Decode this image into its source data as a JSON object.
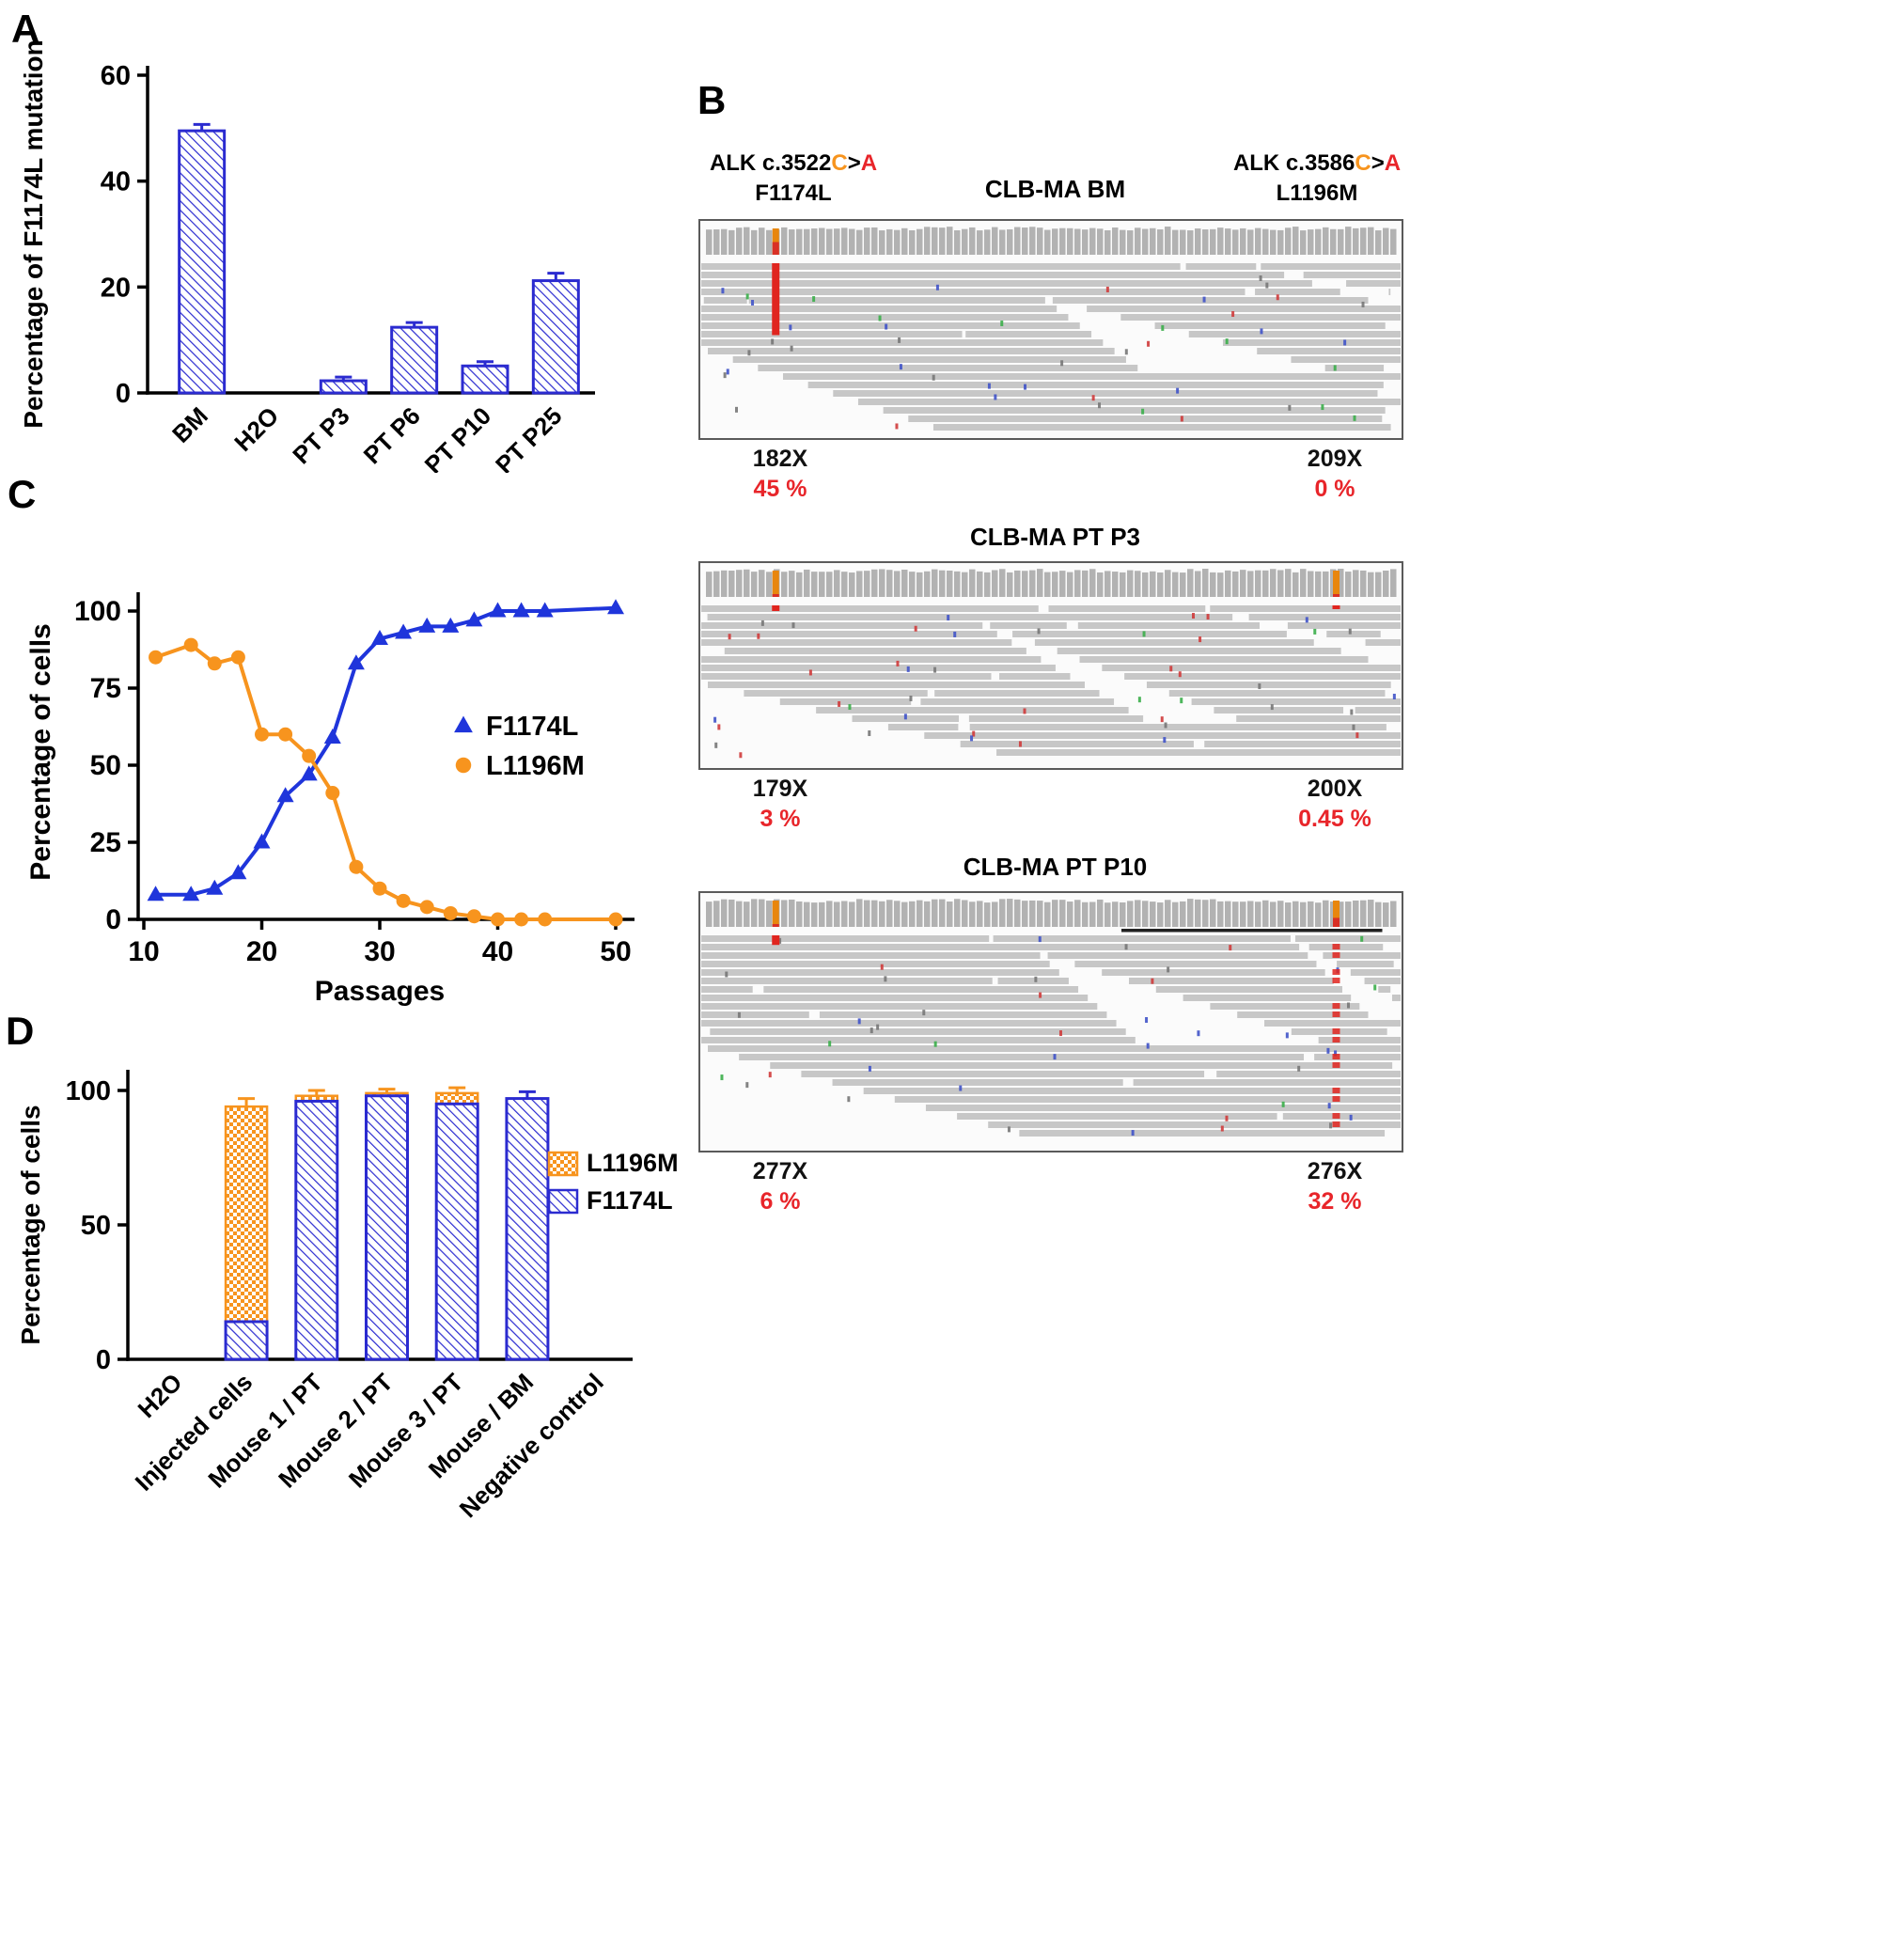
{
  "figure": {
    "panel_labels": {
      "A": "A",
      "B": "B",
      "C": "C",
      "D": "D"
    }
  },
  "colors": {
    "blue": "#2b2bd0",
    "orange": "#f7941e",
    "red": "#e8252a"
  },
  "panels": {
    "B": {
      "annotation_left": {
        "locus": "ALK c.3522",
        "ref": "C",
        "arrow": ">",
        "alt": "A",
        "protein": "F1174L"
      },
      "annotation_right": {
        "locus": "ALK c.3586",
        "ref": "C",
        "arrow": ">",
        "alt": "A",
        "protein": "L1196M"
      },
      "igv_panels": [
        {
          "title": "CLB-MA BM",
          "left_cov": "182X",
          "left_pct": "45 %",
          "right_cov": "209X",
          "right_pct": "0 %"
        },
        {
          "title": "CLB-MA PT P3",
          "left_cov": "179X",
          "left_pct": "3 %",
          "right_cov": "200X",
          "right_pct": "0.45 %"
        },
        {
          "title": "CLB-MA PT P10",
          "left_cov": "277X",
          "left_pct": "6 %",
          "right_cov": "276X",
          "right_pct": "32 %"
        }
      ]
    }
  },
  "chart_data": [
    {
      "id": "A",
      "type": "bar",
      "categories": [
        "BM",
        "H2O",
        "PT P3",
        "PT P6",
        "PT P10",
        "PT P25"
      ],
      "values": [
        49.5,
        0,
        2.3,
        12.4,
        5.1,
        21.2
      ],
      "errors": [
        1.2,
        0,
        0.7,
        0.9,
        0.8,
        1.4
      ],
      "title": "",
      "xlabel": "",
      "ylabel": "Percentage of F1174L mutation",
      "ylim": [
        0,
        60
      ],
      "yticks": [
        0,
        20,
        40,
        60
      ],
      "bar_style": "white with blue diagonal hatch",
      "color": "#2b2bd0"
    },
    {
      "id": "C",
      "type": "line",
      "xlabel": "Passages",
      "ylabel": "Percentage of cells",
      "xlim": [
        10,
        52
      ],
      "ylim": [
        0,
        105
      ],
      "xticks": [
        10,
        20,
        30,
        40,
        50
      ],
      "yticks": [
        0,
        25,
        50,
        75,
        100
      ],
      "x": [
        11,
        14,
        16,
        18,
        20,
        22,
        24,
        26,
        28,
        30,
        32,
        34,
        36,
        38,
        40,
        42,
        44,
        50
      ],
      "series": [
        {
          "name": "F1174L",
          "color": "#1f35db",
          "marker": "triangle",
          "y": [
            8,
            8,
            10,
            15,
            25,
            40,
            47,
            59,
            83,
            91,
            93,
            95,
            95,
            97,
            100,
            100,
            100,
            101
          ]
        },
        {
          "name": "L1196M",
          "color": "#f7941e",
          "marker": "circle",
          "y": [
            85,
            89,
            83,
            85,
            60,
            60,
            53,
            41,
            17,
            10,
            6,
            4,
            2,
            1,
            0,
            0,
            0,
            0
          ]
        }
      ],
      "legend_position": "middle-right",
      "grid": false
    },
    {
      "id": "D",
      "type": "bar",
      "stacked": true,
      "categories": [
        "H2O",
        "Injected cells",
        "Mouse 1 / PT",
        "Mouse 2 / PT",
        "Mouse 3 / PT",
        "Mouse / BM",
        "Negative control"
      ],
      "series": [
        {
          "name": "F1174L",
          "color": "#2b2bd0",
          "pattern": "hatch",
          "values": [
            0,
            14,
            96,
            98,
            95,
            97,
            0
          ]
        },
        {
          "name": "L1196M",
          "color": "#f7941e",
          "pattern": "dots",
          "values": [
            0,
            80,
            2,
            1,
            4,
            0,
            0
          ]
        }
      ],
      "errors_total": [
        0,
        3,
        2,
        1.5,
        2,
        2.5,
        0
      ],
      "ylabel": "Percentage of cells",
      "ylim": [
        0,
        105
      ],
      "yticks": [
        0,
        50,
        100
      ],
      "legend": [
        "L1196M",
        "F1174L"
      ]
    }
  ]
}
